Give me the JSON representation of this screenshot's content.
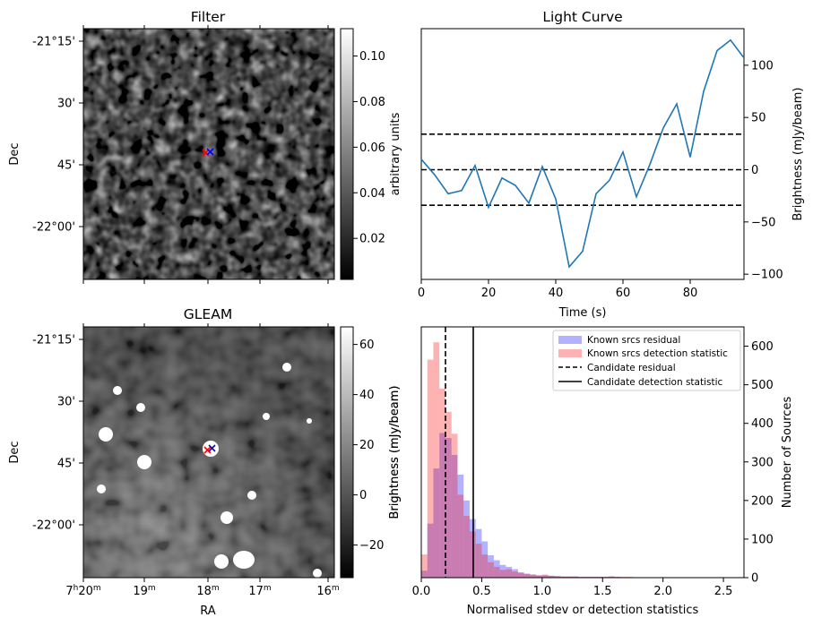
{
  "chart_data": [
    {
      "type": "image",
      "id": "filter",
      "title": "Filter",
      "xlabel": "",
      "ylabel": "Dec",
      "y_ticks": [
        "-21°15'",
        "30'",
        "45'",
        "-22°00'"
      ],
      "colorbar": {
        "label": "arbitrary units",
        "range": [
          0.002,
          0.112
        ],
        "ticks": [
          0.02,
          0.04,
          0.06,
          0.08,
          0.1
        ],
        "tick_labels": [
          "0.02",
          "0.04",
          "0.06",
          "0.08",
          "0.10"
        ]
      },
      "markers": [
        "red x",
        "blue x"
      ]
    },
    {
      "type": "line",
      "id": "light-curve",
      "title": "Light Curve",
      "xlabel": "Time (s)",
      "ylabel": "Brightness (mJy/beam)",
      "xlim": [
        0,
        96
      ],
      "ylim": [
        -105,
        135
      ],
      "x_ticks": [
        0,
        20,
        40,
        60,
        80
      ],
      "y_ticks": [
        -100,
        -50,
        0,
        50,
        100
      ],
      "x": [
        0,
        4,
        8,
        12,
        16,
        20,
        24,
        28,
        32,
        36,
        40,
        44,
        48,
        52,
        56,
        60,
        64,
        68,
        72,
        76,
        80,
        84,
        88,
        92,
        96
      ],
      "values": [
        10,
        -5,
        -23,
        -20,
        4,
        -36,
        -8,
        -15,
        -32,
        3,
        -28,
        -93,
        -78,
        -23,
        -10,
        17,
        -26,
        5,
        40,
        63,
        12,
        75,
        114,
        124,
        107
      ],
      "hlines": [
        34,
        0,
        -34
      ]
    },
    {
      "type": "image",
      "id": "gleam",
      "title": "GLEAM",
      "xlabel": "RA",
      "ylabel": "Dec",
      "x_ticks": [
        "7h20m",
        "19m",
        "18m",
        "17m",
        "16m"
      ],
      "y_ticks": [
        "-21°15'",
        "30'",
        "45'",
        "-22°00'"
      ],
      "colorbar": {
        "label": "Brightness (mJy/beam)",
        "range": [
          -33,
          67
        ],
        "ticks": [
          -20,
          0,
          20,
          40,
          60
        ],
        "tick_labels": [
          "−20",
          "0",
          "20",
          "40",
          "60"
        ]
      },
      "markers": [
        "red x",
        "blue x"
      ]
    },
    {
      "type": "histogram",
      "id": "hist",
      "xlabel": "Normalised stdev or detection statistics",
      "ylabel_left": "Brightness (mJy/beam)",
      "ylabel_right": "Number of Sources",
      "xlim": [
        0,
        2.67
      ],
      "ylim": [
        0,
        650
      ],
      "x_ticks": [
        0.0,
        0.5,
        1.0,
        1.5,
        2.0,
        2.5
      ],
      "x_tick_labels": [
        "0.0",
        "0.5",
        "1.0",
        "1.5",
        "2.0",
        "2.5"
      ],
      "y_ticks": [
        0,
        100,
        200,
        300,
        400,
        500,
        600
      ],
      "bin_width": 0.05,
      "series": [
        {
          "name": "Known srcs residual",
          "color": "#0000ff",
          "alpha": 0.3,
          "values": [
            18,
            140,
            283,
            375,
            362,
            318,
            267,
            200,
            152,
            126,
            94,
            58,
            45,
            33,
            28,
            22,
            14,
            10,
            8,
            6,
            6,
            5,
            4,
            3,
            3,
            3,
            2,
            2,
            2,
            2,
            2,
            2,
            2,
            1,
            1,
            1,
            1,
            1,
            1,
            1,
            1,
            1,
            1,
            1,
            1,
            1,
            1,
            1,
            0,
            0,
            0,
            0
          ]
        },
        {
          "name": "Known srcs detection statistic",
          "color": "#ff0000",
          "alpha": 0.3,
          "values": [
            60,
            565,
            610,
            490,
            430,
            373,
            215,
            160,
            120,
            88,
            60,
            40,
            28,
            20,
            22,
            16,
            12,
            10,
            8,
            6,
            8,
            5,
            4,
            3,
            3,
            3,
            2,
            2,
            2,
            2,
            2,
            4,
            2,
            2,
            2,
            1,
            1,
            1,
            1,
            1,
            1,
            1,
            1,
            1,
            1,
            1,
            1,
            1,
            0,
            0,
            0,
            0
          ]
        }
      ],
      "vlines": [
        {
          "name": "Candidate residual",
          "x": 0.2,
          "style": "dashed"
        },
        {
          "name": "Candidate detection statistic",
          "x": 0.43,
          "style": "solid"
        }
      ],
      "legend": "top-right"
    }
  ]
}
